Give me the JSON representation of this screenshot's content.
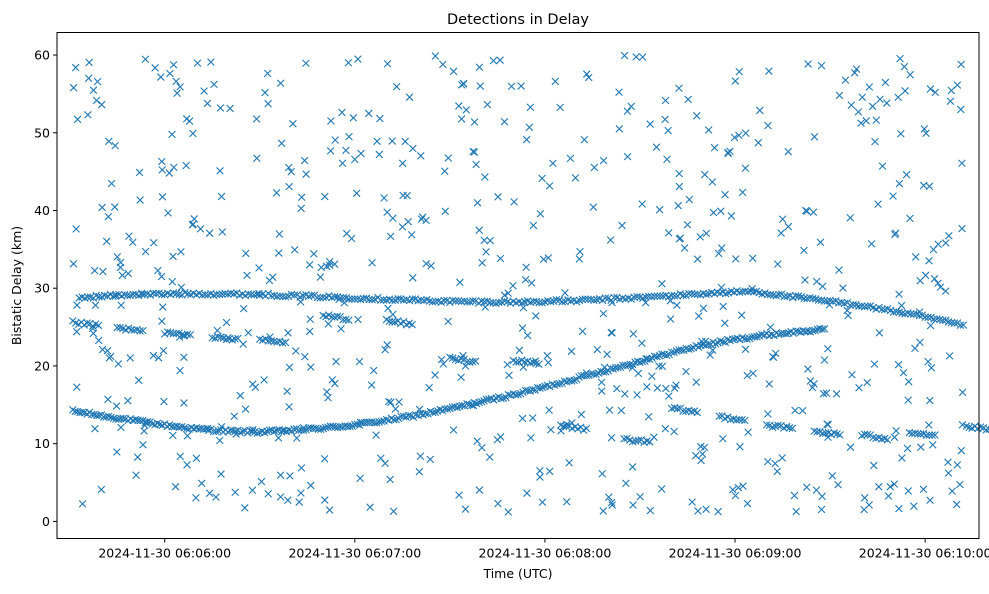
{
  "chart_data": {
    "type": "scatter",
    "title": "Detections in Delay",
    "xlabel": "Time (UTC)",
    "ylabel": "Bistatic Delay (km)",
    "x_ticks": [
      "2024-11-30 06:06:00",
      "2024-11-30 06:07:00",
      "2024-11-30 06:08:00",
      "2024-11-30 06:09:00",
      "2024-11-30 06:10:00"
    ],
    "y_ticks": [
      "0",
      "10",
      "20",
      "30",
      "40",
      "50",
      "60"
    ],
    "x_range": [
      "2024-11-30 06:05:26",
      "2024-11-30 06:10:17"
    ],
    "ylim": [
      -2.2,
      62.9
    ],
    "marker": "x",
    "grid": false,
    "legend": "none",
    "colors": {
      "series": "#1f77b4"
    },
    "series": [
      {
        "track_points": [
          [
            "2024-11-30 06:05:31",
            14.2
          ],
          [
            "2024-11-30 06:05:40",
            13.6
          ],
          [
            "2024-11-30 06:05:50",
            13.0
          ],
          [
            "2024-11-30 06:06:00",
            12.4
          ],
          [
            "2024-11-30 06:06:10",
            11.9
          ],
          [
            "2024-11-30 06:06:20",
            11.6
          ],
          [
            "2024-11-30 06:06:30",
            11.5
          ],
          [
            "2024-11-30 06:06:40",
            11.7
          ],
          [
            "2024-11-30 06:06:50",
            12.0
          ],
          [
            "2024-11-30 06:07:00",
            12.4
          ],
          [
            "2024-11-30 06:07:10",
            13.0
          ],
          [
            "2024-11-30 06:07:20",
            13.7
          ],
          [
            "2024-11-30 06:07:30",
            14.5
          ],
          [
            "2024-11-30 06:07:40",
            15.4
          ],
          [
            "2024-11-30 06:07:50",
            16.3
          ],
          [
            "2024-11-30 06:08:00",
            17.3
          ],
          [
            "2024-11-30 06:08:10",
            18.4
          ],
          [
            "2024-11-30 06:08:20",
            19.5
          ],
          [
            "2024-11-30 06:08:30",
            20.6
          ],
          [
            "2024-11-30 06:08:40",
            21.7
          ],
          [
            "2024-11-30 06:08:50",
            22.7
          ],
          [
            "2024-11-30 06:09:00",
            23.4
          ],
          [
            "2024-11-30 06:09:10",
            24.0
          ],
          [
            "2024-11-30 06:09:20",
            24.4
          ],
          [
            "2024-11-30 06:09:29",
            24.7
          ],
          [
            "2024-11-30 06:05:33",
            28.8
          ],
          [
            "2024-11-30 06:05:50",
            29.2
          ],
          [
            "2024-11-30 06:06:10",
            29.3
          ],
          [
            "2024-11-30 06:06:30",
            29.2
          ],
          [
            "2024-11-30 06:06:50",
            28.9
          ],
          [
            "2024-11-30 06:07:10",
            28.6
          ],
          [
            "2024-11-30 06:07:30",
            28.3
          ],
          [
            "2024-11-30 06:07:50",
            28.2
          ],
          [
            "2024-11-30 06:08:10",
            28.4
          ],
          [
            "2024-11-30 06:08:30",
            28.8
          ],
          [
            "2024-11-30 06:08:50",
            29.3
          ],
          [
            "2024-11-30 06:09:05",
            29.6
          ],
          [
            "2024-11-30 06:09:20",
            28.8
          ],
          [
            "2024-11-30 06:09:40",
            27.8
          ],
          [
            "2024-11-30 06:10:00",
            26.3
          ],
          [
            "2024-11-30 06:10:13",
            25.1
          ],
          [
            "2024-11-30 06:05:31",
            25.6
          ],
          [
            "2024-11-30 06:05:45",
            24.9
          ],
          [
            "2024-11-30 06:06:00",
            24.3
          ],
          [
            "2024-11-30 06:06:15",
            23.8
          ],
          [
            "2024-11-30 06:06:30",
            23.4
          ],
          [
            "2024-11-30 06:06:50",
            26.5
          ],
          [
            "2024-11-30 06:07:10",
            25.8
          ],
          [
            "2024-11-30 06:07:30",
            21.0
          ],
          [
            "2024-11-30 06:07:50",
            20.7
          ],
          [
            "2024-11-30 06:08:05",
            12.3
          ],
          [
            "2024-11-30 06:08:25",
            10.6
          ],
          [
            "2024-11-30 06:08:40",
            14.5
          ],
          [
            "2024-11-30 06:08:55",
            13.5
          ],
          [
            "2024-11-30 06:09:10",
            12.4
          ],
          [
            "2024-11-30 06:09:25",
            11.6
          ],
          [
            "2024-11-30 06:09:40",
            11.1
          ],
          [
            "2024-11-30 06:09:55",
            11.5
          ],
          [
            "2024-11-30 06:10:13",
            12.2
          ]
        ]
      }
    ]
  }
}
